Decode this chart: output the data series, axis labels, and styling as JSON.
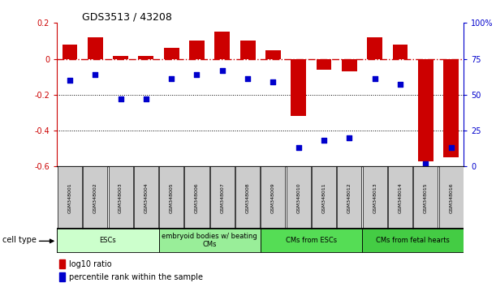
{
  "title": "GDS3513 / 43208",
  "samples": [
    "GSM348001",
    "GSM348002",
    "GSM348003",
    "GSM348004",
    "GSM348005",
    "GSM348006",
    "GSM348007",
    "GSM348008",
    "GSM348009",
    "GSM348010",
    "GSM348011",
    "GSM348012",
    "GSM348013",
    "GSM348014",
    "GSM348015",
    "GSM348016"
  ],
  "log10_ratio": [
    0.08,
    0.12,
    0.015,
    0.015,
    0.06,
    0.1,
    0.15,
    0.1,
    0.05,
    -0.32,
    -0.06,
    -0.07,
    0.12,
    0.08,
    -0.57,
    -0.55
  ],
  "percentile_rank": [
    60,
    64,
    47,
    47,
    61,
    64,
    67,
    61,
    59,
    13,
    18,
    20,
    61,
    57,
    2,
    13
  ],
  "ylim_left": [
    -0.6,
    0.2
  ],
  "ylim_right": [
    0,
    100
  ],
  "yticks_left": [
    -0.6,
    -0.4,
    -0.2,
    0.0,
    0.2
  ],
  "ytick_labels_left": [
    "-0.6",
    "-0.4",
    "-0.2",
    "0",
    "0.2"
  ],
  "yticks_right": [
    0,
    25,
    50,
    75,
    100
  ],
  "ytick_labels_right": [
    "0",
    "25",
    "50",
    "75",
    "100%"
  ],
  "bar_color": "#cc0000",
  "dot_color": "#0000cc",
  "dotted_line_values": [
    -0.2,
    -0.4
  ],
  "zero_line_color": "#cc0000",
  "cell_types": [
    {
      "label": "ESCs",
      "start": 0,
      "end": 3,
      "color": "#ccffcc"
    },
    {
      "label": "embryoid bodies w/ beating\nCMs",
      "start": 4,
      "end": 7,
      "color": "#99ee99"
    },
    {
      "label": "CMs from ESCs",
      "start": 8,
      "end": 11,
      "color": "#55dd55"
    },
    {
      "label": "CMs from fetal hearts",
      "start": 12,
      "end": 15,
      "color": "#44cc44"
    }
  ],
  "background_color": "#ffffff"
}
